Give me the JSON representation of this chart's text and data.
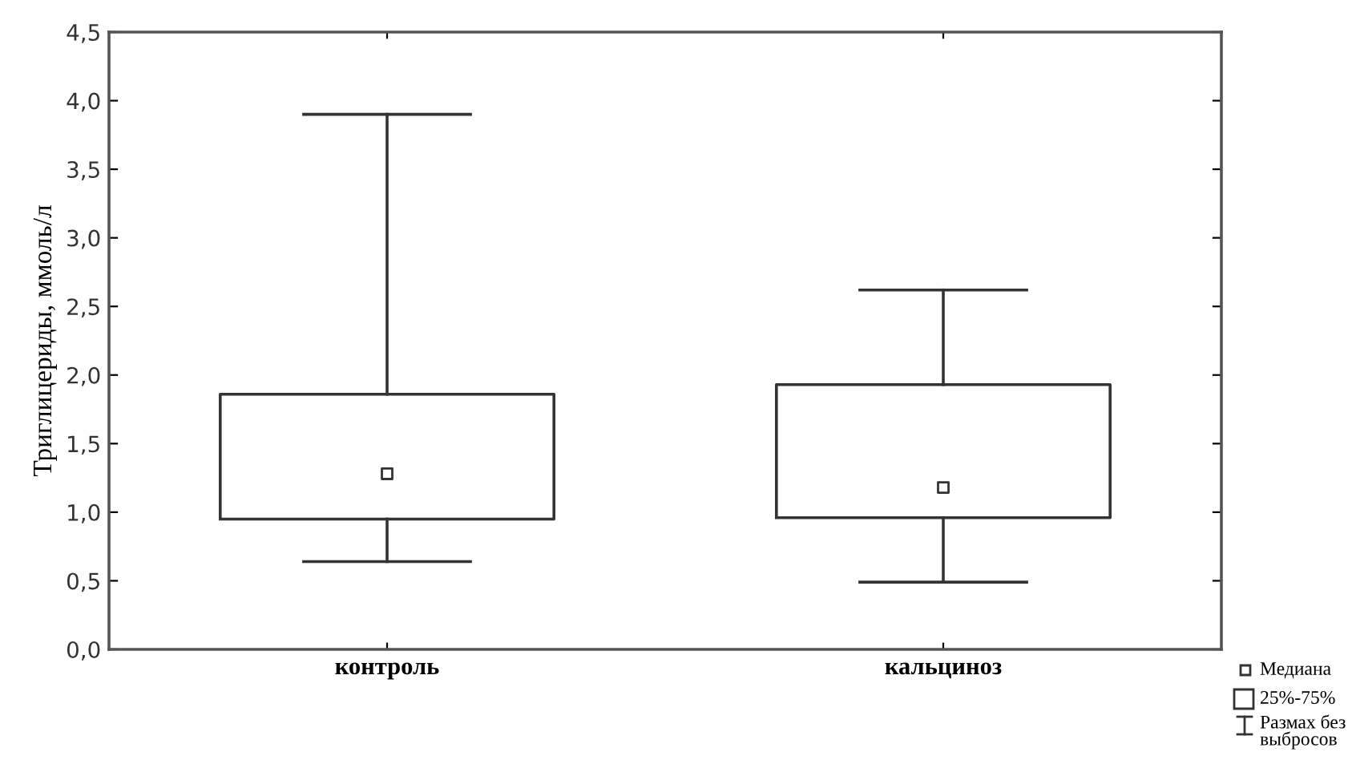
{
  "chart_data": {
    "type": "box",
    "ylabel": "Триглицериды, ммоль/л",
    "categories": [
      "контроль",
      "кальциноз"
    ],
    "boxes": [
      {
        "low": 0.64,
        "q1": 0.95,
        "median": 1.28,
        "q3": 1.86,
        "high": 3.9
      },
      {
        "low": 0.49,
        "q1": 0.96,
        "median": 1.18,
        "q3": 1.93,
        "high": 2.62
      }
    ],
    "ylim": [
      0,
      4.5
    ],
    "yticks": [
      {
        "value": 0,
        "label": "0,0"
      },
      {
        "value": 0.5,
        "label": "0,5"
      },
      {
        "value": 1,
        "label": "1,0"
      },
      {
        "value": 1.5,
        "label": "1,5"
      },
      {
        "value": 2,
        "label": "2,0"
      },
      {
        "value": 2.5,
        "label": "2,5"
      },
      {
        "value": 3,
        "label": "3,0"
      },
      {
        "value": 3.5,
        "label": "3,5"
      },
      {
        "value": 4,
        "label": "4,0"
      },
      {
        "value": 4.5,
        "label": "4,5"
      }
    ],
    "marker": "square",
    "grid": false,
    "annotations": [
      "Медиана",
      "25%-75%",
      "Размах без\nвыбросов"
    ]
  }
}
